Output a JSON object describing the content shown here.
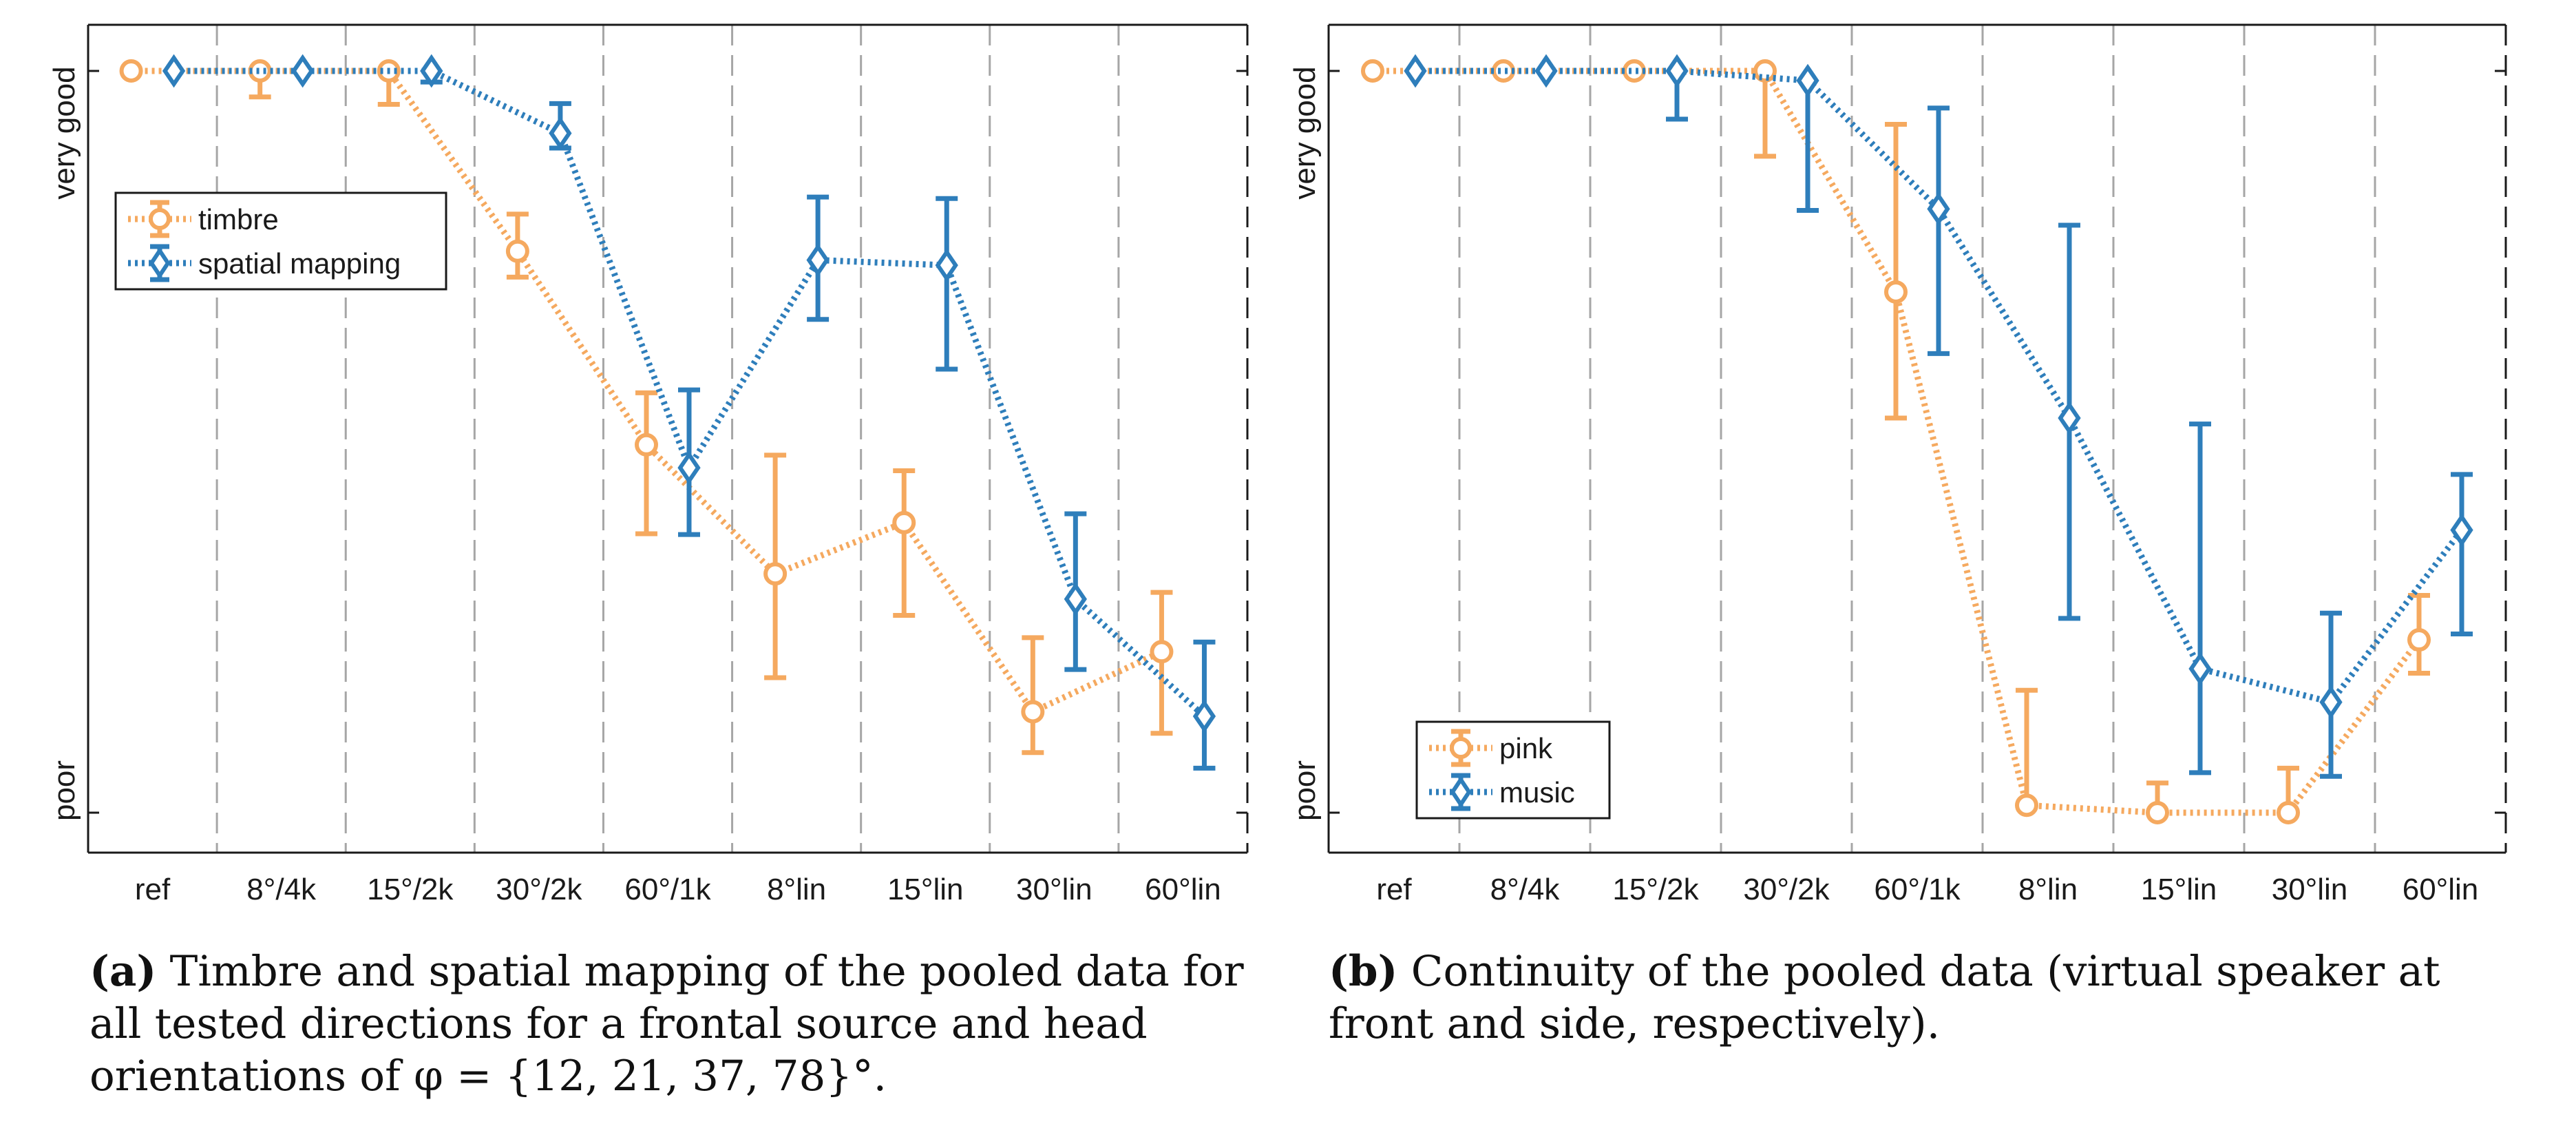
{
  "chart_data": [
    {
      "type": "line",
      "id": "a",
      "categories": [
        "ref",
        "8°/4k",
        "15°/2k",
        "30°/2k",
        "60°/1k",
        "8°lin",
        "15°lin",
        "30°lin",
        "60°lin"
      ],
      "ylim": [
        0,
        1
      ],
      "ytick_labels": {
        "top": "very good",
        "bottom": "poor"
      },
      "legend_position": "upper-left",
      "series": [
        {
          "name": "timbre",
          "color": "#F5A95F",
          "marker": "circle",
          "values": [
            1.0,
            1.0,
            1.0,
            0.757,
            0.496,
            0.322,
            0.391,
            0.136,
            0.217
          ],
          "err_low": [
            0.0,
            0.035,
            0.045,
            0.035,
            0.12,
            0.14,
            0.125,
            0.055,
            0.11
          ],
          "err_high": [
            0.0,
            0.0,
            0.0,
            0.05,
            0.07,
            0.16,
            0.07,
            0.1,
            0.08
          ]
        },
        {
          "name": "spatial mapping",
          "color": "#2E7EBB",
          "marker": "diamond",
          "values": [
            1.0,
            1.0,
            1.0,
            0.916,
            0.465,
            0.745,
            0.738,
            0.288,
            0.13
          ],
          "err_low": [
            0.0,
            0.0,
            0.015,
            0.02,
            0.09,
            0.08,
            0.14,
            0.095,
            0.07
          ],
          "err_high": [
            0.0,
            0.0,
            0.0,
            0.04,
            0.105,
            0.085,
            0.09,
            0.115,
            0.1
          ]
        }
      ]
    },
    {
      "type": "line",
      "id": "b",
      "categories": [
        "ref",
        "8°/4k",
        "15°/2k",
        "30°/2k",
        "60°/1k",
        "8°lin",
        "15°lin",
        "30°lin",
        "60°lin"
      ],
      "ylim": [
        0,
        1
      ],
      "ytick_labels": {
        "top": "very good",
        "bottom": "poor"
      },
      "legend_position": "lower-left",
      "series": [
        {
          "name": "pink",
          "color": "#F5A95F",
          "marker": "circle",
          "values": [
            1.0,
            1.0,
            1.0,
            1.0,
            0.702,
            0.01,
            0.0,
            0.0,
            0.233
          ],
          "err_low": [
            0.0,
            0.0,
            0.0,
            0.115,
            0.17,
            0.0,
            0.0,
            0.0,
            0.045
          ],
          "err_high": [
            0.0,
            0.0,
            0.0,
            0.0,
            0.226,
            0.155,
            0.04,
            0.06,
            0.06
          ]
        },
        {
          "name": "music",
          "color": "#2E7EBB",
          "marker": "diamond",
          "values": [
            1.0,
            1.0,
            1.0,
            0.987,
            0.814,
            0.532,
            0.194,
            0.149,
            0.381
          ],
          "err_low": [
            0.0,
            0.0,
            0.065,
            0.175,
            0.195,
            0.27,
            0.14,
            0.1,
            0.14
          ],
          "err_high": [
            0.0,
            0.0,
            0.0,
            0.0,
            0.136,
            0.26,
            0.33,
            0.12,
            0.075
          ]
        }
      ]
    }
  ],
  "captions": {
    "a": {
      "label": "(a)",
      "text": "Timbre and spatial mapping of the pooled data for all tested directions for a frontal source and head orientations of φ = {12, 21, 37, 78}°."
    },
    "b": {
      "label": "(b)",
      "text": "Continuity of the pooled data (virtual speaker at front and side, respectively)."
    }
  }
}
